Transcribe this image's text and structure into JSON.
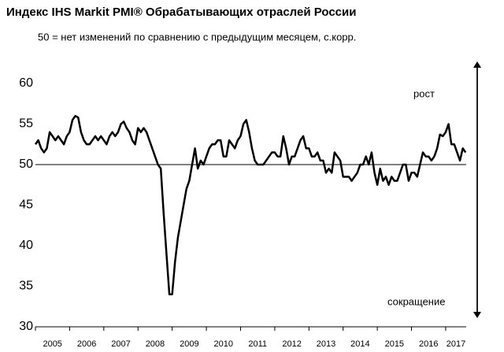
{
  "chart_data": {
    "type": "line",
    "title": "Индекс IHS Markit PMI® Обрабатывающих отраслей России",
    "subtitle": "50 = нет изменений по сравнению с предыдущим месяцем, с.корр.",
    "annotations": [
      "рост",
      "сокращение"
    ],
    "color": "#000000",
    "hline": 50,
    "x": [
      2005,
      2005.083,
      2005.167,
      2005.25,
      2005.333,
      2005.417,
      2005.5,
      2005.583,
      2005.667,
      2005.75,
      2005.833,
      2005.917,
      2006,
      2006.083,
      2006.167,
      2006.25,
      2006.333,
      2006.417,
      2006.5,
      2006.583,
      2006.667,
      2006.75,
      2006.833,
      2006.917,
      2007,
      2007.083,
      2007.167,
      2007.25,
      2007.333,
      2007.417,
      2007.5,
      2007.583,
      2007.667,
      2007.75,
      2007.833,
      2007.917,
      2008,
      2008.083,
      2008.167,
      2008.25,
      2008.333,
      2008.417,
      2008.5,
      2008.583,
      2008.667,
      2008.75,
      2008.833,
      2008.917,
      2009,
      2009.083,
      2009.167,
      2009.25,
      2009.333,
      2009.417,
      2009.5,
      2009.583,
      2009.667,
      2009.75,
      2009.833,
      2009.917,
      2010,
      2010.083,
      2010.167,
      2010.25,
      2010.333,
      2010.417,
      2010.5,
      2010.583,
      2010.667,
      2010.75,
      2010.833,
      2010.917,
      2011,
      2011.083,
      2011.167,
      2011.25,
      2011.333,
      2011.417,
      2011.5,
      2011.583,
      2011.667,
      2011.75,
      2011.833,
      2011.917,
      2012,
      2012.083,
      2012.167,
      2012.25,
      2012.333,
      2012.417,
      2012.5,
      2012.583,
      2012.667,
      2012.75,
      2012.833,
      2012.917,
      2013,
      2013.083,
      2013.167,
      2013.25,
      2013.333,
      2013.417,
      2013.5,
      2013.583,
      2013.667,
      2013.75,
      2013.833,
      2013.917,
      2014,
      2014.083,
      2014.167,
      2014.25,
      2014.333,
      2014.417,
      2014.5,
      2014.583,
      2014.667,
      2014.75,
      2014.833,
      2014.917,
      2015,
      2015.083,
      2015.167,
      2015.25,
      2015.333,
      2015.417,
      2015.5,
      2015.583,
      2015.667,
      2015.75,
      2015.833,
      2015.917,
      2016,
      2016.083,
      2016.167,
      2016.25,
      2016.333,
      2016.417,
      2016.5,
      2016.583,
      2016.667,
      2016.75,
      2016.833,
      2016.917,
      2017,
      2017.083,
      2017.167,
      2017.25,
      2017.333,
      2017.417,
      2017.5,
      2017.583
    ],
    "values": [
      52.5,
      53,
      52,
      51.5,
      52,
      54,
      53.5,
      53,
      53.5,
      53,
      52.5,
      53.5,
      54,
      55.5,
      56,
      55.8,
      54,
      53,
      52.5,
      52.5,
      53,
      53.5,
      53,
      53.5,
      53,
      52.5,
      53.5,
      54,
      53.5,
      54,
      55,
      55.3,
      54.5,
      54,
      53,
      52.5,
      54.5,
      54,
      54.5,
      54,
      53,
      52,
      51,
      50,
      49.5,
      44,
      39,
      34,
      34,
      38,
      41,
      43,
      45,
      47,
      48,
      50,
      52,
      49.5,
      50.5,
      50,
      51,
      52,
      52.5,
      52.5,
      53,
      53,
      51,
      51,
      53,
      52.5,
      52,
      53,
      53.5,
      55,
      55.5,
      54,
      52,
      50.5,
      50,
      50,
      50,
      50.5,
      51,
      51.5,
      51.5,
      51,
      51,
      53.5,
      52,
      50,
      51,
      51,
      52,
      53,
      53.5,
      52,
      52,
      51,
      51,
      51.5,
      50.5,
      50.5,
      49,
      49.5,
      49,
      51.5,
      51,
      50.5,
      48.5,
      48.5,
      48.5,
      48,
      48.5,
      49,
      50,
      50,
      51,
      50,
      51.5,
      49,
      47.5,
      49.5,
      48,
      48.5,
      47.5,
      48.5,
      48,
      48,
      49,
      50,
      50,
      48,
      49,
      49,
      48.5,
      50,
      51.5,
      51,
      51,
      50.5,
      51,
      52,
      53.7,
      53.5,
      54,
      55,
      52.5,
      52.5,
      51.5,
      50.5,
      52,
      51.5
    ],
    "xlim": [
      2005,
      2017.6
    ],
    "xticks": [
      2005,
      2006,
      2007,
      2008,
      2009,
      2010,
      2011,
      2012,
      2013,
      2014,
      2015,
      2016,
      2017
    ],
    "ylim": [
      30,
      60
    ],
    "yticks": [
      30,
      35,
      40,
      45,
      50,
      55,
      60
    ]
  }
}
